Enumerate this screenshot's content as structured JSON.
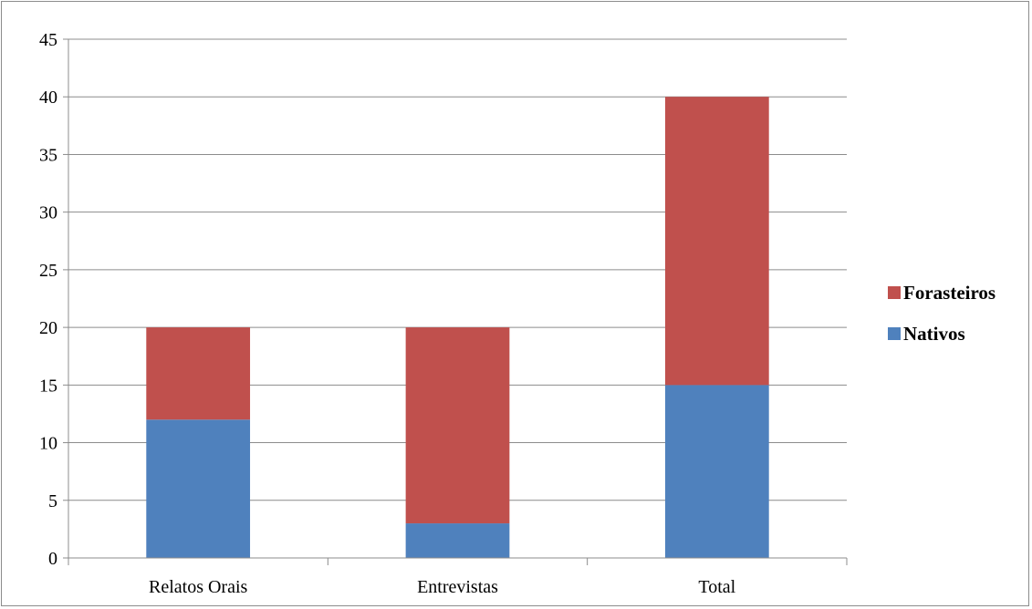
{
  "chart_data": {
    "type": "bar",
    "stacked": true,
    "categories": [
      "Relatos Orais",
      "Entrevistas",
      "Total"
    ],
    "series": [
      {
        "name": "Nativos",
        "values": [
          12,
          3,
          15
        ],
        "color": "#4f81bd"
      },
      {
        "name": "Forasteiros",
        "values": [
          8,
          17,
          25
        ],
        "color": "#c0504d"
      }
    ],
    "title": "",
    "xlabel": "",
    "ylabel": "",
    "ylim": [
      0,
      45
    ],
    "yticks": [
      0,
      5,
      10,
      15,
      20,
      25,
      30,
      35,
      40,
      45
    ],
    "grid": true,
    "legend": {
      "position": "right",
      "order": [
        "Forasteiros",
        "Nativos"
      ]
    }
  }
}
